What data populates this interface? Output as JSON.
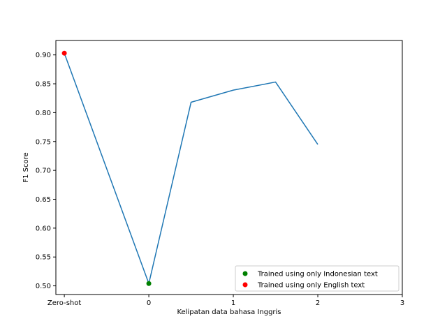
{
  "chart_data": {
    "type": "line",
    "title": "",
    "xlabel": "Kelipatan data bahasa Inggris",
    "ylabel": "F1 Score",
    "xlim": [
      -1.1,
      3
    ],
    "ylim": [
      0.485,
      0.925
    ],
    "x_ticks": [
      {
        "value": -1,
        "label": "Zero-shot"
      },
      {
        "value": 0,
        "label": "0"
      },
      {
        "value": 1,
        "label": "1"
      },
      {
        "value": 2,
        "label": "2"
      },
      {
        "value": 3,
        "label": "3"
      }
    ],
    "y_ticks": [
      {
        "value": 0.5,
        "label": "0.50"
      },
      {
        "value": 0.55,
        "label": "0.55"
      },
      {
        "value": 0.6,
        "label": "0.60"
      },
      {
        "value": 0.65,
        "label": "0.65"
      },
      {
        "value": 0.7,
        "label": "0.70"
      },
      {
        "value": 0.75,
        "label": "0.75"
      },
      {
        "value": 0.8,
        "label": "0.80"
      },
      {
        "value": 0.85,
        "label": "0.85"
      },
      {
        "value": 0.9,
        "label": "0.90"
      }
    ],
    "grid": false,
    "legend_position": "lower-right",
    "line_series": {
      "color": "#1f77b4",
      "x": [
        -1,
        0,
        0.5,
        1,
        1.5,
        2
      ],
      "y": [
        0.903,
        0.504,
        0.818,
        0.839,
        0.853,
        0.745
      ]
    },
    "markers": [
      {
        "name": "Trained using only Indonesian text",
        "x": 0,
        "y": 0.504,
        "color": "#008000"
      },
      {
        "name": "Trained using only English text",
        "x": -1,
        "y": 0.903,
        "color": "#ff0000"
      }
    ]
  }
}
